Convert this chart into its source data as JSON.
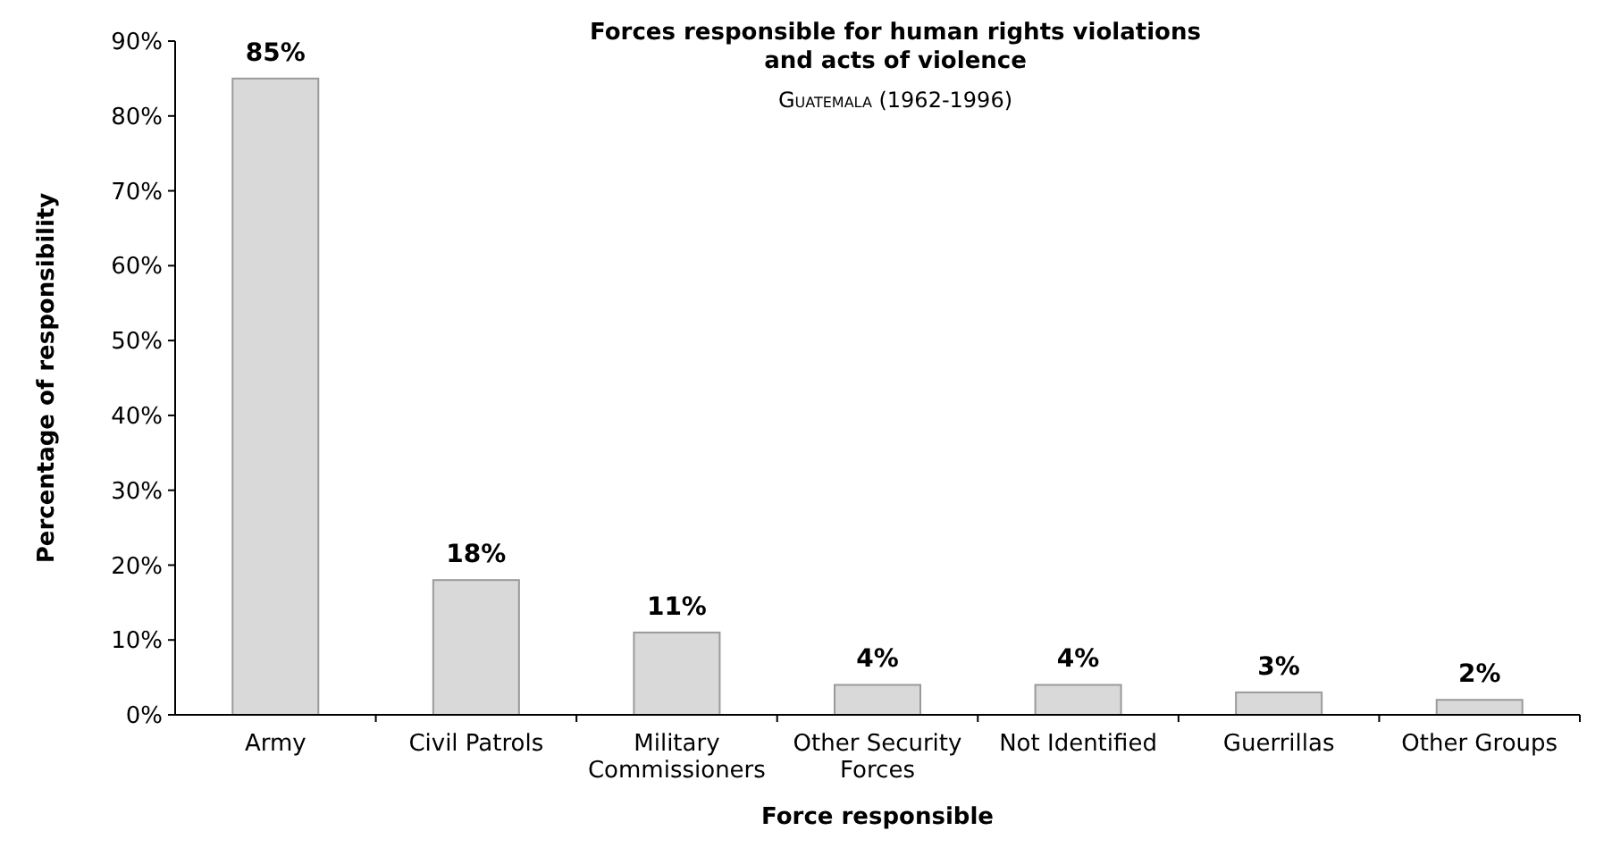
{
  "chart_data": {
    "type": "bar",
    "title": "Forces responsible for human rights violations and acts of violence",
    "subtitle": "Guatemala (1962-1996)",
    "xlabel": "Force responsible",
    "ylabel": "Percentage of responsibility",
    "categories": [
      "Army",
      "Civil Patrols",
      "Military Commissioners",
      "Other Security Forces",
      "Not Identified",
      "Guerrillas",
      "Other Groups"
    ],
    "values": [
      85,
      18,
      11,
      4,
      4,
      3,
      2
    ],
    "color": "#d9d9d9",
    "data_labels": true,
    "value_labels": [
      "85%",
      "18%",
      "11%",
      "4%",
      "4%",
      "3%",
      "2%"
    ],
    "ylim": [
      0,
      90
    ],
    "yticks": [
      {
        "value": 0,
        "label": "0%"
      },
      {
        "value": 10,
        "label": "10%"
      },
      {
        "value": 20,
        "label": "20%"
      },
      {
        "value": 30,
        "label": "30%"
      },
      {
        "value": 40,
        "label": "40%"
      },
      {
        "value": 50,
        "label": "50%"
      },
      {
        "value": 60,
        "label": "60%"
      },
      {
        "value": 70,
        "label": "70%"
      },
      {
        "value": 80,
        "label": "80%"
      },
      {
        "value": 90,
        "label": "90%"
      }
    ]
  }
}
